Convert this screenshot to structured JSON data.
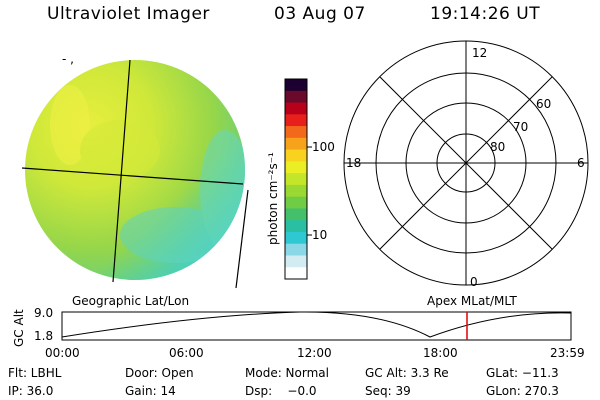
{
  "header": {
    "title": "Ultraviolet Imager",
    "date": "03 Aug 07",
    "time": "19:14:26 UT"
  },
  "image_panel": {
    "title": "Geographic Lat/Lon",
    "corner_marks": "- ,"
  },
  "colorbar": {
    "unit_label": "photon cm⁻²s⁻¹",
    "tick_labels": [
      "100",
      "10"
    ],
    "colors": [
      "#1b0030",
      "#6a0a2a",
      "#b8001a",
      "#e8201c",
      "#f2691c",
      "#f6a21a",
      "#f8d21e",
      "#eaee24",
      "#c4e62a",
      "#9ad832",
      "#70cc44",
      "#44c06a",
      "#2abfa2",
      "#2ec8d2",
      "#8ad8e6",
      "#d2ecf2",
      "#ffffff"
    ]
  },
  "polar_panel": {
    "title": "Apex MLat/MLT",
    "hour_labels": {
      "top": "12",
      "bottom": "0",
      "left": "18",
      "right": "6"
    },
    "lat_labels": [
      "60",
      "70",
      "80"
    ]
  },
  "altitude_plot": {
    "ylabel": "GC Alt",
    "ytick_top": "9.0",
    "ytick_bottom": "1.8",
    "time_ticks": [
      "00:00",
      "06:00",
      "12:00",
      "18:00",
      "23:59"
    ],
    "marker_color": "#e00000",
    "line_color": "#000000"
  },
  "info": {
    "row1": {
      "filter": "Flt: LBHL",
      "door": "Door: Open",
      "mode": "Mode: Normal",
      "gc_alt": "GC Alt: 3.3 Re",
      "glat": "GLat: −11.3"
    },
    "row2": {
      "ip": "IP: 36.0",
      "gain": "Gain: 14",
      "dsp": "Dsp:    −0.0",
      "seq": "Seq: 39",
      "glon": "GLon: 270.3"
    }
  }
}
